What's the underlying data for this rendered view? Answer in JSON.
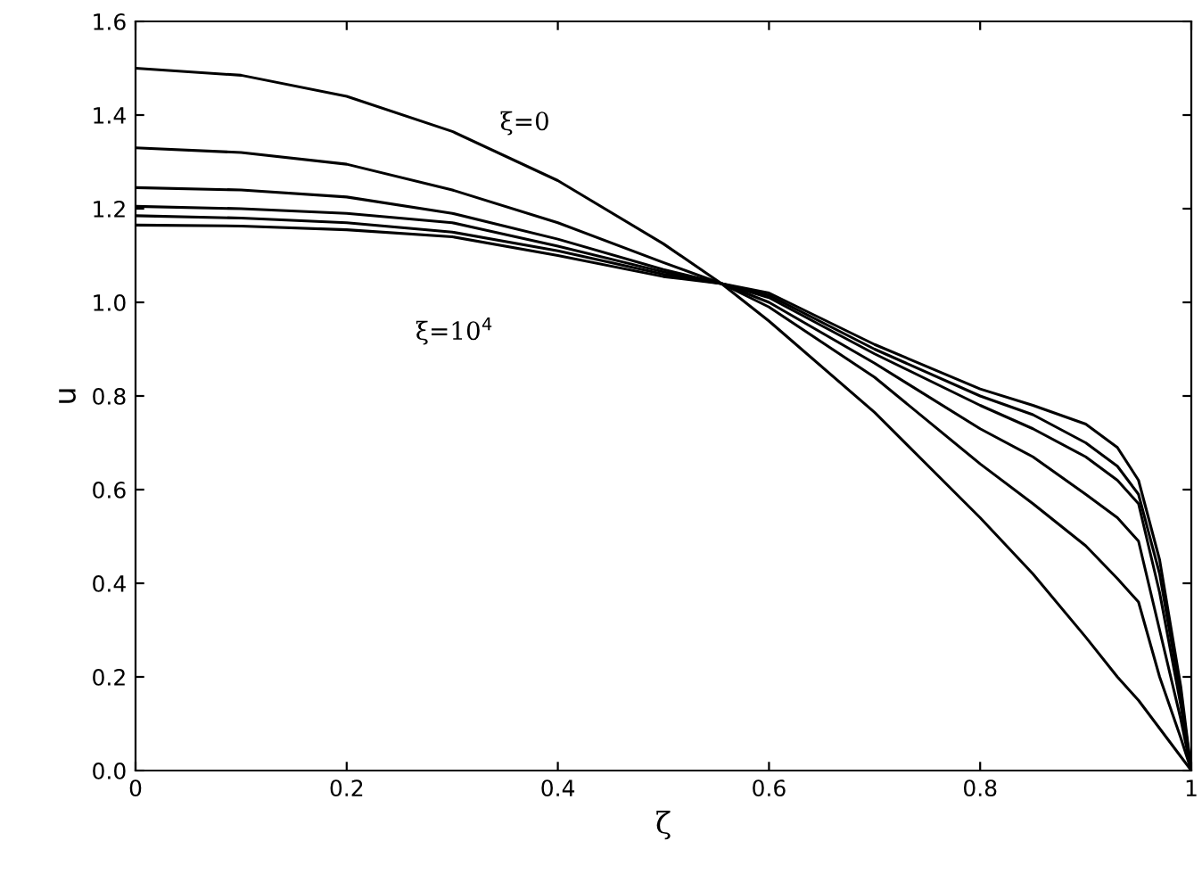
{
  "chart_data": {
    "type": "line",
    "xlabel": "ζ",
    "ylabel": "u",
    "xlim": [
      0,
      1
    ],
    "ylim": [
      0,
      1.6
    ],
    "xticks": [
      0,
      0.2,
      0.4,
      0.6,
      0.8,
      1
    ],
    "yticks": [
      {
        "value": 0,
        "label": "0.0"
      },
      {
        "value": 0.2,
        "label": "0.2"
      },
      {
        "value": 0.4,
        "label": "0.4"
      },
      {
        "value": 0.6,
        "label": "0.6"
      },
      {
        "value": 0.8,
        "label": "0.8"
      },
      {
        "value": 1,
        "label": "1.0"
      },
      {
        "value": 1.2,
        "label": "1.2"
      },
      {
        "value": 1.4,
        "label": "1.4"
      },
      {
        "value": 1.6,
        "label": "1.6"
      }
    ],
    "grid": false,
    "marker": "none",
    "line_style": "solid",
    "x": [
      0,
      0.1,
      0.2,
      0.3,
      0.4,
      0.5,
      0.555,
      0.6,
      0.7,
      0.8,
      0.85,
      0.9,
      0.93,
      0.95,
      0.97,
      0.99,
      1
    ],
    "series": [
      {
        "color": "#000000",
        "values": [
          1.5,
          1.485,
          1.44,
          1.365,
          1.26,
          1.125,
          1.04,
          0.96,
          0.765,
          0.54,
          0.42,
          0.285,
          0.2,
          0.15,
          0.09,
          0.03,
          0
        ]
      },
      {
        "color": "#000000",
        "values": [
          1.33,
          1.32,
          1.295,
          1.24,
          1.17,
          1.085,
          1.04,
          0.99,
          0.84,
          0.655,
          0.57,
          0.48,
          0.41,
          0.36,
          0.2,
          0.07,
          0
        ]
      },
      {
        "color": "#000000",
        "values": [
          1.245,
          1.24,
          1.225,
          1.19,
          1.135,
          1.07,
          1.04,
          1.0,
          0.87,
          0.73,
          0.67,
          0.59,
          0.54,
          0.49,
          0.3,
          0.11,
          0
        ]
      },
      {
        "color": "#000000",
        "values": [
          1.205,
          1.2,
          1.19,
          1.17,
          1.12,
          1.065,
          1.04,
          1.01,
          0.89,
          0.78,
          0.73,
          0.67,
          0.62,
          0.57,
          0.38,
          0.14,
          0
        ]
      },
      {
        "color": "#000000",
        "values": [
          1.185,
          1.18,
          1.17,
          1.15,
          1.11,
          1.06,
          1.04,
          1.015,
          0.9,
          0.8,
          0.76,
          0.7,
          0.65,
          0.59,
          0.42,
          0.16,
          0
        ]
      },
      {
        "color": "#000000",
        "values": [
          1.165,
          1.163,
          1.155,
          1.14,
          1.1,
          1.055,
          1.04,
          1.02,
          0.91,
          0.815,
          0.78,
          0.74,
          0.69,
          0.62,
          0.45,
          0.18,
          0
        ]
      }
    ],
    "annotations": [
      "ξ=0",
      "ξ=10$^{4}$"
    ]
  }
}
